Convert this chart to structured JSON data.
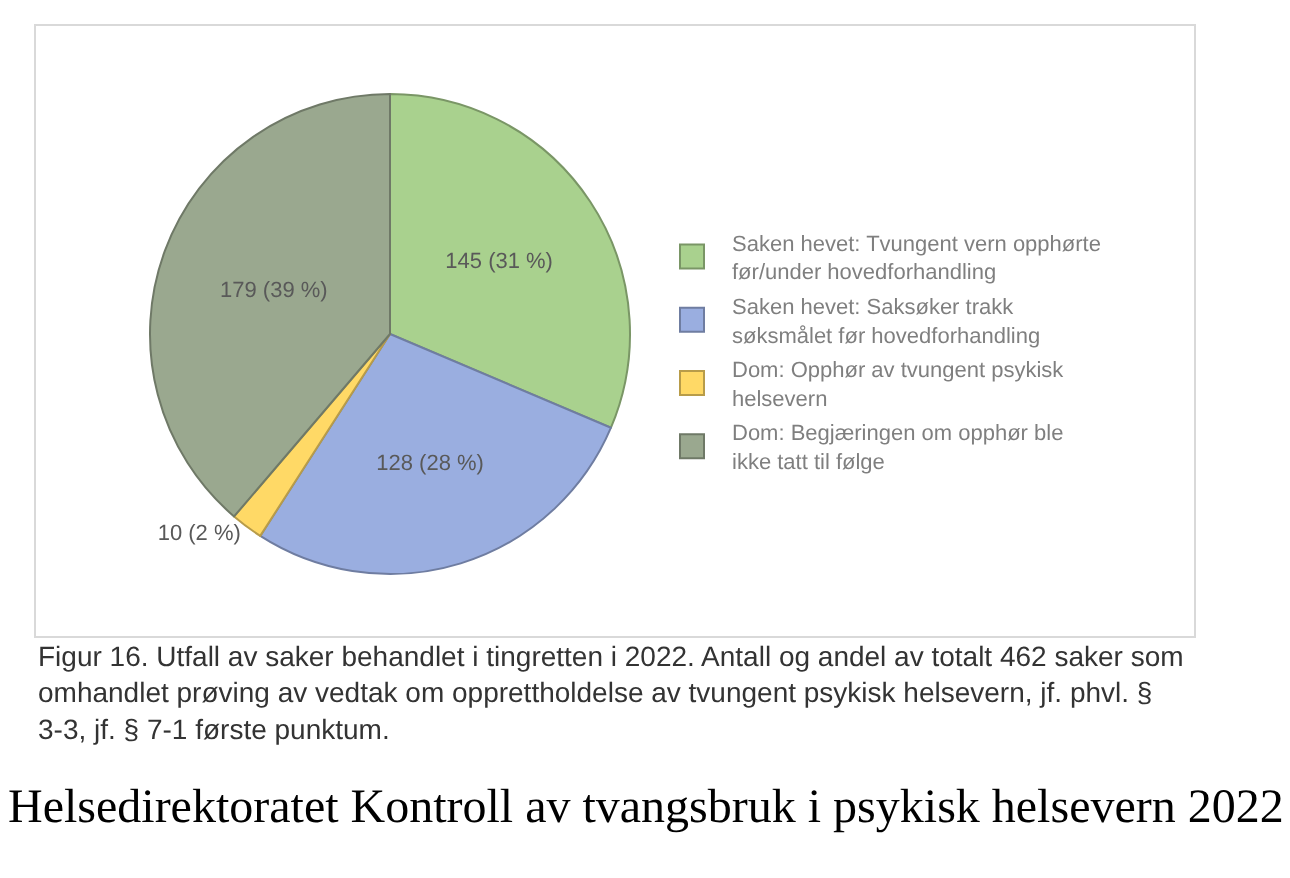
{
  "chart_data": {
    "type": "pie",
    "categories": [
      "Saken hevet: Tvungent vern opphørte før/under hovedforhandling",
      "Saken hevet: Saksøker trakk søksmålet før hovedforhandling",
      "Dom: Opphør av tvungent psykisk helsevern",
      "Dom: Begjæringen om opphør ble ikke tatt til følge"
    ],
    "values": [
      145,
      128,
      10,
      179
    ],
    "value_labels": [
      "145 (31 %)",
      "128 (28 %)",
      "10 (2 %)",
      "179 (39 %)"
    ],
    "colors": [
      "#a9d18e",
      "#9aaee0",
      "#ffd966",
      "#9aa88f"
    ],
    "legend": "right",
    "annotations": [
      "Figur 16. Utfall av saker behandlet i tingretten i 2022. Antall og andel av totalt 462 saker som omhandlet prøving av vedtak om opprettholdelse av tvungent psykisk helsevern, jf. phvl. § 3-3, jf. § 7-1 første punktum.",
      "Helsedirektoratet Kontroll av tvangsbruk i psykisk helsevern 2022"
    ]
  }
}
